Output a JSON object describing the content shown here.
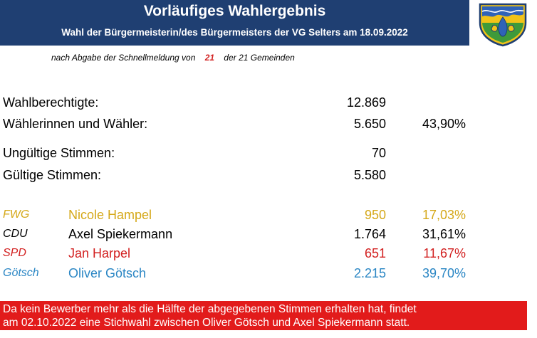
{
  "header": {
    "title": "Vorläufiges Wahlergebnis",
    "subtitle": "Wahl der Bürgermeisterin/des Bürgermeisters der VG Selters am 18.09.2022"
  },
  "note": {
    "prefix": "nach Abgabe der Schnellmeldung von",
    "count": "21",
    "suffix": "der 21 Gemeinden"
  },
  "stats": {
    "eligible": {
      "label": "Wahlberechtigte:",
      "value": "12.869"
    },
    "voters": {
      "label": "Wählerinnen und Wähler:",
      "value": "5.650",
      "percent": "43,90%"
    },
    "invalid": {
      "label": "Ungültige Stimmen:",
      "value": "70"
    },
    "valid": {
      "label": "Gültige Stimmen:",
      "value": "5.580"
    }
  },
  "candidates": [
    {
      "party": "FWG",
      "name": "Nicole Hampel",
      "votes": "950",
      "percent": "17,03%",
      "color": "#d5a819"
    },
    {
      "party": "CDU",
      "name": "Axel Spiekermann",
      "votes": "1.764",
      "percent": "31,61%",
      "color": "#000000"
    },
    {
      "party": "SPD",
      "name": "Jan Harpel",
      "votes": "651",
      "percent": "11,67%",
      "color": "#d21f1f"
    },
    {
      "party": "Götsch",
      "name": "Oliver Götsch",
      "votes": "2.215",
      "percent": "39,70%",
      "color": "#2a86c4"
    }
  ],
  "footer": {
    "line1": "Da kein Bewerber mehr als die Hälfte der abgegebenen Stimmen erhalten hat, findet",
    "line2": "am 02.10.2022 eine Stichwahl zwischen  Oliver Götsch und Axel Spiekermann statt."
  },
  "crest": {
    "icon": "coat-of-arms-icon"
  },
  "colors": {
    "header_bg": "#1f3f72",
    "footer_bg": "#e21b1b"
  }
}
